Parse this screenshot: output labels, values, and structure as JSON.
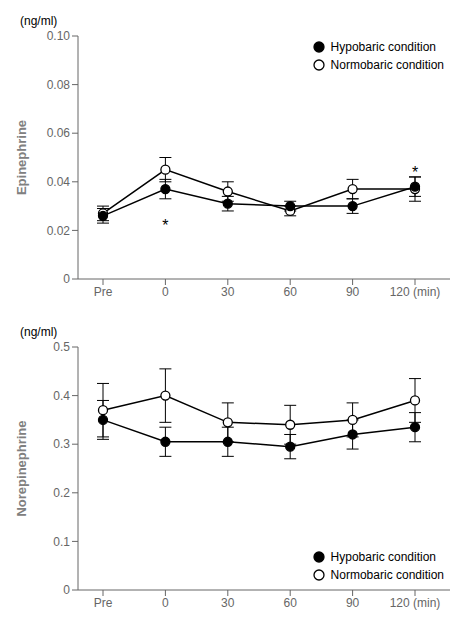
{
  "chart_data": [
    {
      "type": "line",
      "y_label": "Epinephrine",
      "categories": [
        "Pre",
        "0",
        "30",
        "60",
        "90",
        "120 (min)"
      ],
      "series": [
        {
          "name": "Hypobaric condition",
          "color": "#000000",
          "marker": "filled_circle",
          "values": [
            0.026,
            0.037,
            0.031,
            0.03,
            0.03,
            0.038
          ],
          "error": [
            0.003,
            0.004,
            0.003,
            0.002,
            0.003,
            0.004
          ]
        },
        {
          "name": "Normobaric condition",
          "color": "#000000",
          "marker": "open_circle",
          "values": [
            0.027,
            0.045,
            0.036,
            0.028,
            0.037,
            0.037
          ],
          "error": [
            0.003,
            0.005,
            0.004,
            0.002,
            0.004,
            0.005
          ]
        }
      ],
      "ylim": [
        0,
        0.1
      ],
      "yticks": [
        0,
        0.02,
        0.04,
        0.06,
        0.08,
        {
          "value": 0.1,
          "label": "0.10"
        }
      ],
      "grid": false,
      "legend": "upper right",
      "annotations": [
        {
          "text": "(ng/ml)"
        },
        {
          "text": "*",
          "x": "0",
          "y": 0.022
        },
        {
          "text": "*",
          "x": "120 (min)",
          "y": 0.044
        }
      ]
    },
    {
      "type": "line",
      "y_label": "Norepinephrine",
      "categories": [
        "Pre",
        "0",
        "30",
        "60",
        "90",
        "120 (min)"
      ],
      "series": [
        {
          "name": "Hypobaric condition",
          "color": "#000000",
          "marker": "filled_circle",
          "values": [
            0.35,
            0.305,
            0.305,
            0.295,
            0.32,
            0.335
          ],
          "error": [
            0.04,
            0.03,
            0.03,
            0.025,
            0.03,
            0.03
          ]
        },
        {
          "name": "Normobaric condition",
          "color": "#000000",
          "marker": "open_circle",
          "values": [
            0.37,
            0.4,
            0.345,
            0.34,
            0.35,
            0.39
          ],
          "error": [
            0.055,
            0.055,
            0.04,
            0.04,
            0.035,
            0.045
          ]
        }
      ],
      "ylim": [
        0,
        0.5
      ],
      "yticks": [
        0,
        0.1,
        0.2,
        0.3,
        0.4,
        0.5
      ],
      "grid": false,
      "legend": "lower right",
      "annotations": [
        {
          "text": "(ng/ml)"
        }
      ]
    }
  ]
}
